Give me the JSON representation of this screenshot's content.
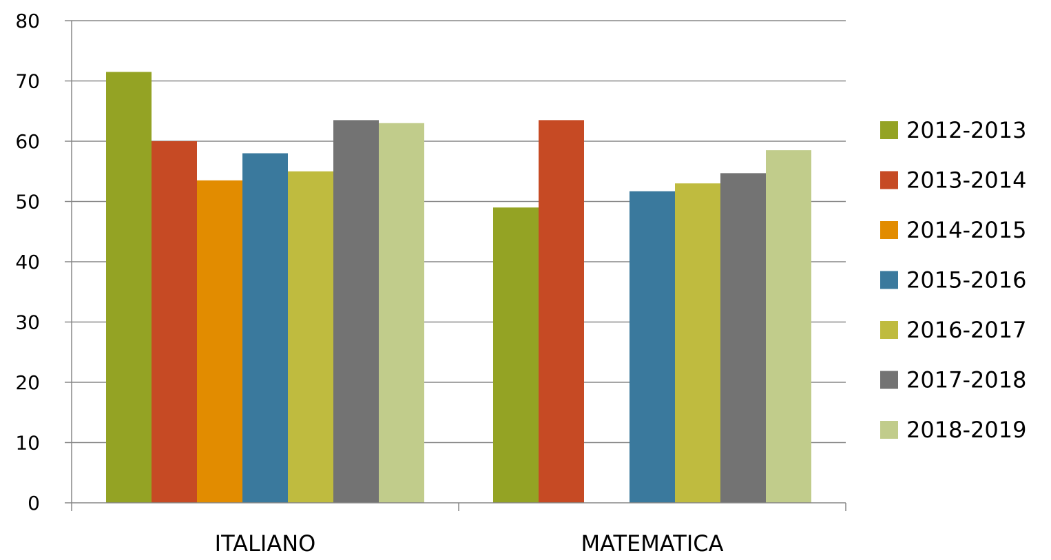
{
  "chart_data": {
    "type": "bar",
    "title": "",
    "xlabel": "",
    "ylabel": "",
    "categories": [
      "ITALIANO",
      "MATEMATICA"
    ],
    "ylim": [
      0,
      80
    ],
    "yticks": [
      "0",
      "10",
      "20",
      "30",
      "40",
      "50",
      "60",
      "70",
      "80"
    ],
    "grid": true,
    "legend_position": "right",
    "series": [
      {
        "name": "2012-2013",
        "color": "#94a324",
        "values": [
          71.5,
          49.0
        ]
      },
      {
        "name": "2013-2014",
        "color": "#c64a24",
        "values": [
          60.0,
          63.5
        ]
      },
      {
        "name": "2014-2015",
        "color": "#e28c00",
        "values": [
          53.5,
          null
        ]
      },
      {
        "name": "2015-2016",
        "color": "#3a799d",
        "values": [
          58.0,
          51.7
        ]
      },
      {
        "name": "2016-2017",
        "color": "#bfbb3f",
        "values": [
          55.0,
          53.0
        ]
      },
      {
        "name": "2017-2018",
        "color": "#737373",
        "values": [
          63.5,
          54.7
        ]
      },
      {
        "name": "2018-2019",
        "color": "#c1cc8b",
        "values": [
          63.0,
          58.5
        ]
      }
    ]
  }
}
